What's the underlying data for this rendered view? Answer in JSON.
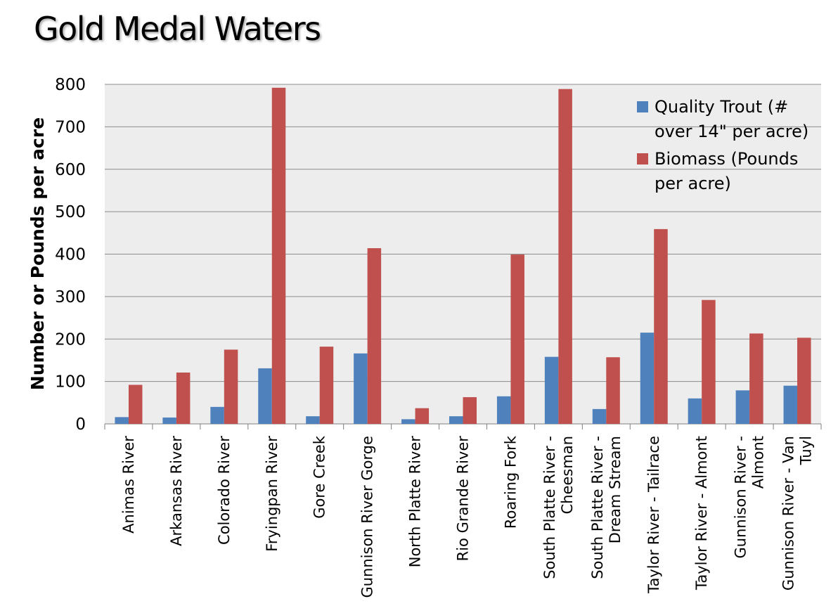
{
  "title": "Gold Medal Waters",
  "colors": {
    "series1": "#4F81BD",
    "series2": "#C0504D",
    "plot_bg": "#EDEDED",
    "grid": "#8C8C8C"
  },
  "chart_data": {
    "type": "bar",
    "ylabel": "Number or Pounds per acre",
    "xlabel": "",
    "ylim": [
      0,
      800
    ],
    "yticks": [
      0,
      100,
      200,
      300,
      400,
      500,
      600,
      700,
      800
    ],
    "grid": true,
    "legend_position": "top-right",
    "categories": [
      "Animas River",
      "Arkansas River",
      "Colorado River",
      "Fryingpan River",
      "Gore Creek",
      "Gunnison River Gorge",
      "North Platte River",
      "Rio Grande River",
      "Roaring Fork",
      "South Platte River - Cheesman",
      "South Platte River - Dream Stream",
      "Taylor River - Tailrace",
      "Taylor River - Almont",
      "Gunnison River - Almont",
      "Gunnison River - Van Tuyl"
    ],
    "category_lines": [
      [
        "Animas River"
      ],
      [
        "Arkansas River"
      ],
      [
        "Colorado River"
      ],
      [
        "Fryingpan River"
      ],
      [
        "Gore Creek"
      ],
      [
        "Gunnison River Gorge"
      ],
      [
        "North Platte River"
      ],
      [
        "Rio Grande River"
      ],
      [
        "Roaring Fork"
      ],
      [
        "South Platte River -",
        "Cheesman"
      ],
      [
        "South Platte River -",
        "Dream Stream"
      ],
      [
        "Taylor River - Tailrace"
      ],
      [
        "Taylor River - Almont"
      ],
      [
        "Gunnison River -",
        "Almont"
      ],
      [
        "Gunnison River - Van",
        "Tuyl"
      ]
    ],
    "series": [
      {
        "name": "Quality Trout (# over 14\" per acre)",
        "legend_lines": [
          "Quality Trout (#",
          "over 14\" per acre)"
        ],
        "values": [
          16,
          15,
          40,
          131,
          18,
          166,
          11,
          18,
          65,
          158,
          35,
          215,
          60,
          79,
          90
        ]
      },
      {
        "name": "Biomass (Pounds per acre)",
        "legend_lines": [
          "Biomass (Pounds",
          "per acre)"
        ],
        "values": [
          92,
          121,
          175,
          792,
          182,
          414,
          37,
          63,
          399,
          789,
          157,
          459,
          292,
          213,
          203
        ]
      }
    ]
  }
}
